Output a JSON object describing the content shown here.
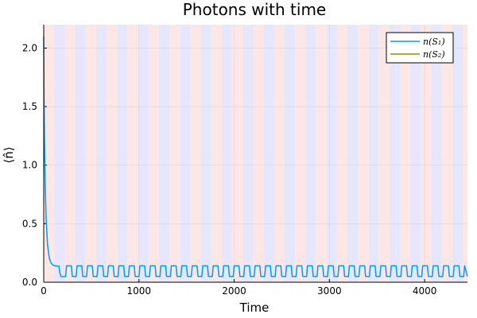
{
  "chart_data": {
    "type": "line",
    "title": "Photons with time",
    "xlabel": "Time",
    "ylabel": "⟨n̂⟩",
    "xlim": [
      0,
      4450
    ],
    "ylim": [
      0,
      2.2
    ],
    "x_ticks": [
      0,
      1000,
      2000,
      3000,
      4000
    ],
    "y_ticks": [
      0.0,
      0.5,
      1.0,
      1.5,
      2.0
    ],
    "x_tick_labels": [
      "0",
      "1000",
      "2000",
      "3000",
      "4000"
    ],
    "y_tick_labels": [
      "0.0",
      "0.5",
      "1.0",
      "1.5",
      "2.0"
    ],
    "grid": true,
    "legend_position": "top-right",
    "background_bands": {
      "period": 110,
      "colors": [
        "#fde6e6",
        "#e6e6fd"
      ]
    },
    "series": [
      {
        "name": "n(S₁)",
        "color": "#009af9",
        "x": [
          0,
          3,
          8,
          15,
          25,
          40,
          60,
          80,
          100,
          120,
          140,
          160,
          170,
          180,
          190,
          230,
          240,
          290,
          300,
          340,
          350,
          400,
          410,
          450,
          460,
          510,
          520,
          560,
          570,
          620,
          630,
          670,
          680,
          730,
          740,
          780,
          790,
          840,
          850,
          890,
          900,
          950,
          960,
          1000,
          1010,
          1060,
          1070,
          1110,
          1120,
          1170,
          1180,
          1220,
          1230,
          1280,
          1290,
          1330,
          1340,
          1390,
          1400,
          1440,
          1450,
          1500,
          1510,
          1550,
          1560,
          1610,
          1620,
          1660,
          1670,
          1720,
          1730,
          1770,
          1780,
          1830,
          1840,
          1880,
          1890,
          1940,
          1950,
          1990,
          2000,
          2050,
          2060,
          2100,
          2110,
          2160,
          2170,
          2210,
          2220,
          2270,
          2280,
          2320,
          2330,
          2380,
          2390,
          2430,
          2440,
          2490,
          2500,
          2540,
          2550,
          2600,
          2610,
          2650,
          2660,
          2710,
          2720,
          2760,
          2770,
          2820,
          2830,
          2870,
          2880,
          2930,
          2940,
          2980,
          2990,
          3040,
          3050,
          3090,
          3100,
          3150,
          3160,
          3200,
          3210,
          3260,
          3270,
          3310,
          3320,
          3370,
          3380,
          3420,
          3430,
          3480,
          3490,
          3530,
          3540,
          3590,
          3600,
          3640,
          3650,
          3700,
          3710,
          3750,
          3760,
          3810,
          3820,
          3860,
          3870,
          3920,
          3930,
          3970,
          3980,
          4030,
          4040,
          4080,
          4090,
          4140,
          4150,
          4190,
          4200,
          4250,
          4260,
          4300,
          4310,
          4360,
          4370,
          4410,
          4420,
          4450
        ],
        "y": [
          2.1,
          1.6,
          1.2,
          0.85,
          0.55,
          0.32,
          0.2,
          0.16,
          0.145,
          0.14,
          0.138,
          0.137,
          0.08,
          0.05,
          0.048,
          0.048,
          0.14,
          0.14,
          0.05,
          0.048,
          0.14,
          0.14,
          0.05,
          0.048,
          0.14,
          0.14,
          0.05,
          0.048,
          0.14,
          0.14,
          0.05,
          0.048,
          0.14,
          0.14,
          0.05,
          0.048,
          0.14,
          0.14,
          0.05,
          0.048,
          0.14,
          0.14,
          0.05,
          0.048,
          0.14,
          0.14,
          0.05,
          0.048,
          0.14,
          0.14,
          0.05,
          0.048,
          0.14,
          0.14,
          0.05,
          0.048,
          0.14,
          0.14,
          0.05,
          0.048,
          0.14,
          0.14,
          0.05,
          0.048,
          0.14,
          0.14,
          0.05,
          0.048,
          0.14,
          0.14,
          0.05,
          0.048,
          0.14,
          0.14,
          0.05,
          0.048,
          0.14,
          0.14,
          0.05,
          0.048,
          0.14,
          0.14,
          0.05,
          0.048,
          0.14,
          0.14,
          0.05,
          0.048,
          0.14,
          0.14,
          0.05,
          0.048,
          0.14,
          0.14,
          0.05,
          0.048,
          0.14,
          0.14,
          0.05,
          0.048,
          0.14,
          0.14,
          0.05,
          0.048,
          0.14,
          0.14,
          0.05,
          0.048,
          0.14,
          0.14,
          0.05,
          0.048,
          0.14,
          0.14,
          0.05,
          0.048,
          0.14,
          0.14,
          0.05,
          0.048,
          0.14,
          0.14,
          0.05,
          0.048,
          0.14,
          0.14,
          0.05,
          0.048,
          0.14,
          0.14,
          0.05,
          0.048,
          0.14,
          0.14,
          0.05,
          0.048,
          0.14,
          0.14,
          0.05,
          0.048,
          0.14,
          0.14,
          0.05,
          0.048,
          0.14,
          0.14,
          0.05,
          0.048,
          0.14,
          0.14,
          0.05,
          0.048,
          0.14,
          0.14,
          0.05,
          0.048,
          0.14,
          0.14,
          0.05,
          0.048,
          0.14,
          0.14,
          0.05,
          0.048,
          0.14,
          0.14,
          0.05,
          0.048,
          0.14,
          0.05
        ]
      },
      {
        "name": "n(S₂)",
        "color": "#8f8f00",
        "x": [],
        "y": []
      }
    ]
  }
}
